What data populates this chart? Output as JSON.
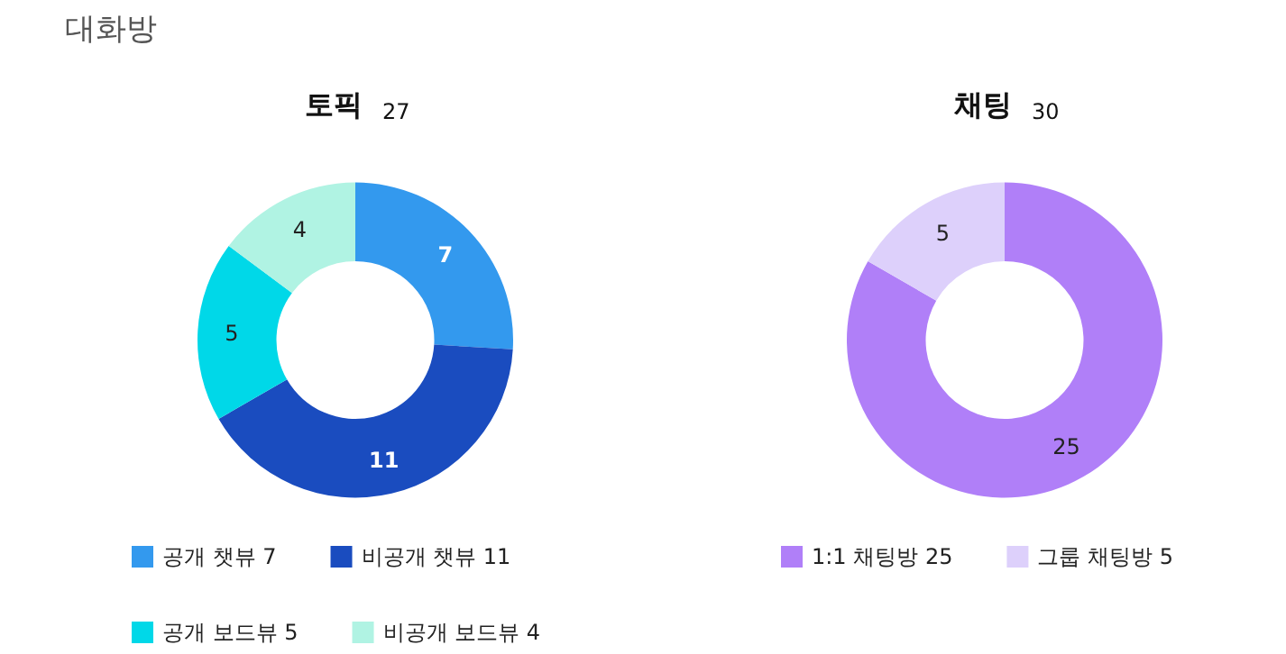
{
  "chart_data": [
    {
      "type": "donut",
      "title": "토픽",
      "subtitle": "27",
      "annotations": [
        "대화방"
      ],
      "categories": [
        "공개 챗뷰 7",
        "비공개 챗뷰 11",
        "공개 보드뷰 5",
        "비공개 보드뷰 4"
      ],
      "values": [
        7,
        11,
        5,
        4
      ],
      "colors": [
        "#3399ee",
        "#1a4cbf",
        "#00d8e8",
        "#b0f3e3"
      ],
      "data_labels": true,
      "legend": "bottom"
    },
    {
      "type": "donut",
      "title": "채팅",
      "subtitle": "30",
      "categories": [
        "1:1 채팅방 25",
        "그룹 채팅방 5"
      ],
      "values": [
        25,
        5
      ],
      "colors": [
        "#b07ff8",
        "#ddd0fb"
      ],
      "data_labels": true,
      "legend": "bottom"
    }
  ]
}
